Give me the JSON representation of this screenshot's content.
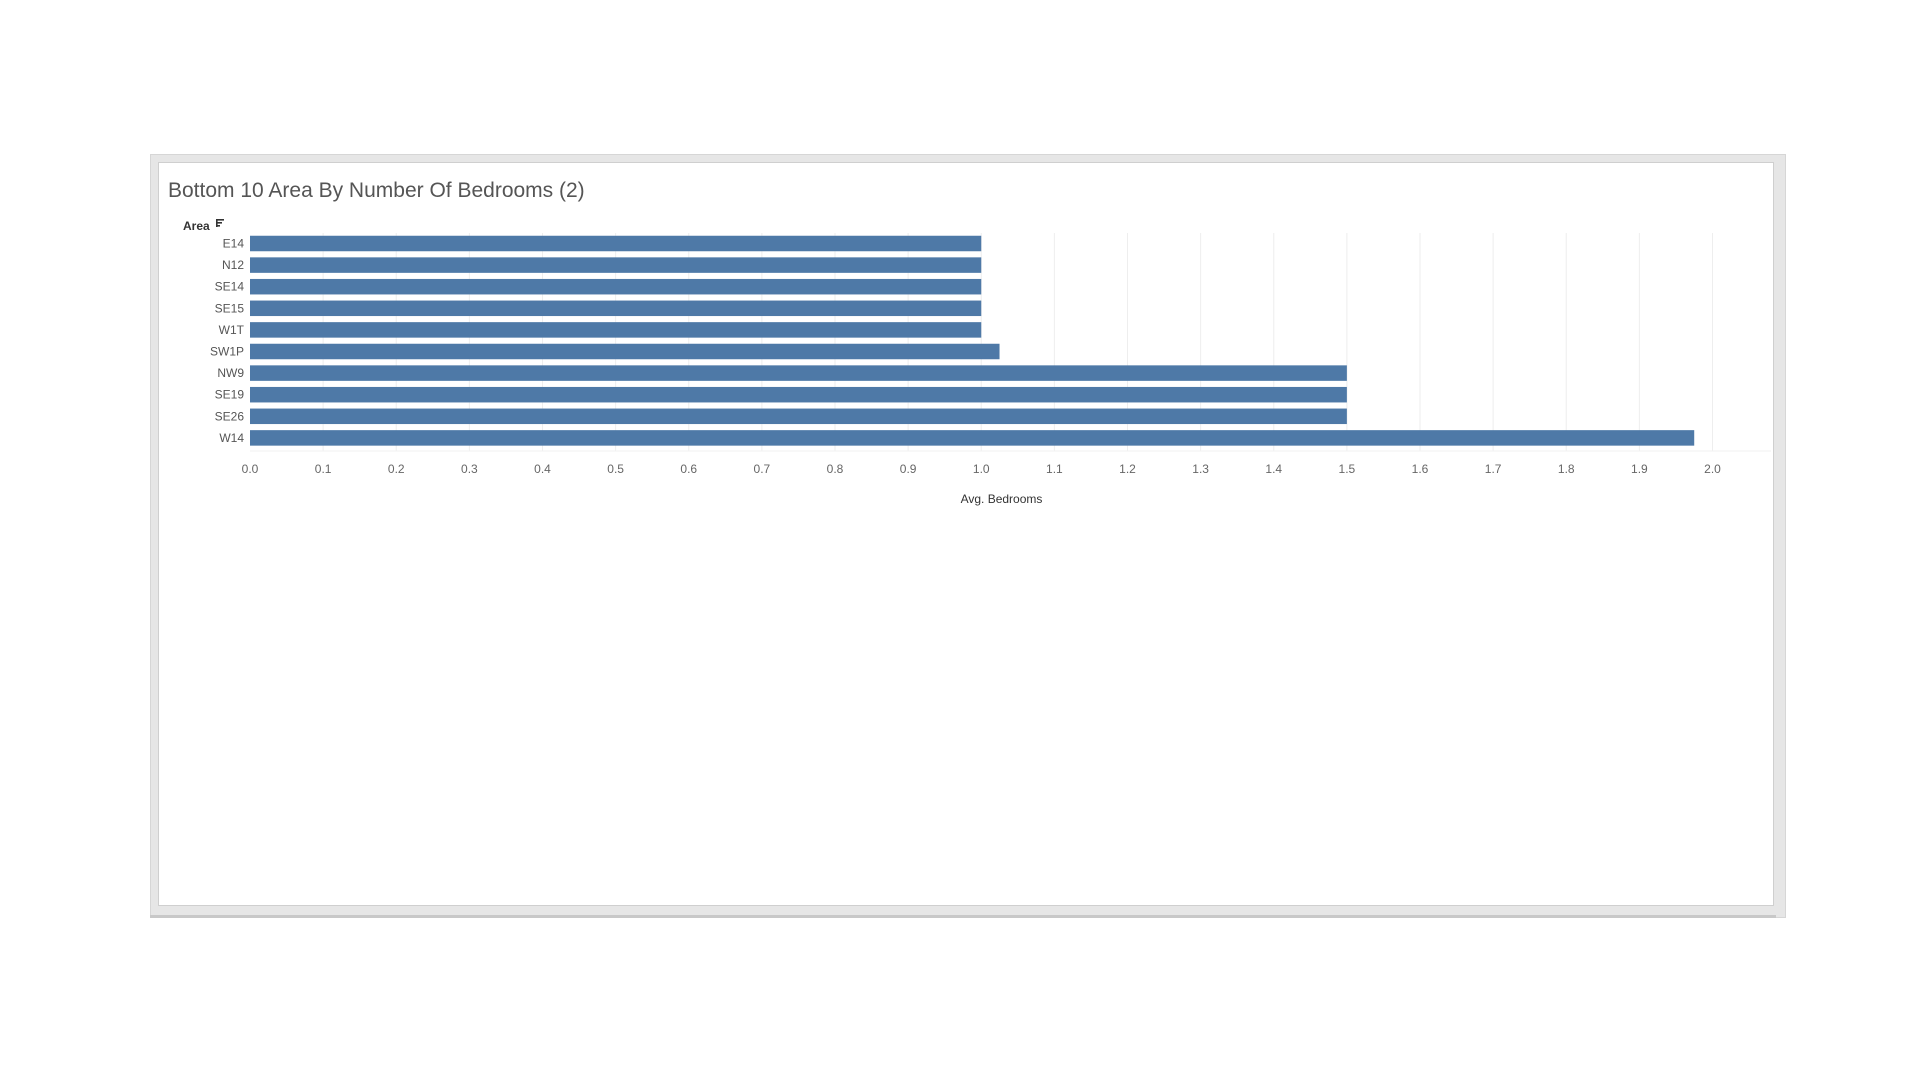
{
  "title": "Bottom 10 Area By Number Of Bedrooms (2)",
  "colors": {
    "bar": "#4e79a7",
    "grid": "#eeeeee",
    "tick_text": "#666666",
    "label_text": "#333333"
  },
  "chart_data": {
    "type": "bar",
    "orientation": "horizontal",
    "title": "Bottom 10 Area By Number Of Bedrooms (2)",
    "row_header": "Area",
    "sort_icon": "sort-descending-icon",
    "categories": [
      "E14",
      "N12",
      "SE14",
      "SE15",
      "W1T",
      "SW1P",
      "NW9",
      "SE19",
      "SE26",
      "W14"
    ],
    "values": [
      1.0,
      1.0,
      1.0,
      1.0,
      1.0,
      1.025,
      1.5,
      1.5,
      1.5,
      1.975
    ],
    "xlabel": "Avg. Bedrooms",
    "xlim": [
      0,
      2.08
    ],
    "x_ticks": [
      "0.0",
      "0.1",
      "0.2",
      "0.3",
      "0.4",
      "0.5",
      "0.6",
      "0.7",
      "0.8",
      "0.9",
      "1.0",
      "1.1",
      "1.2",
      "1.3",
      "1.4",
      "1.5",
      "1.6",
      "1.7",
      "1.8",
      "1.9",
      "2.0"
    ],
    "grid": true,
    "legend": "none"
  }
}
